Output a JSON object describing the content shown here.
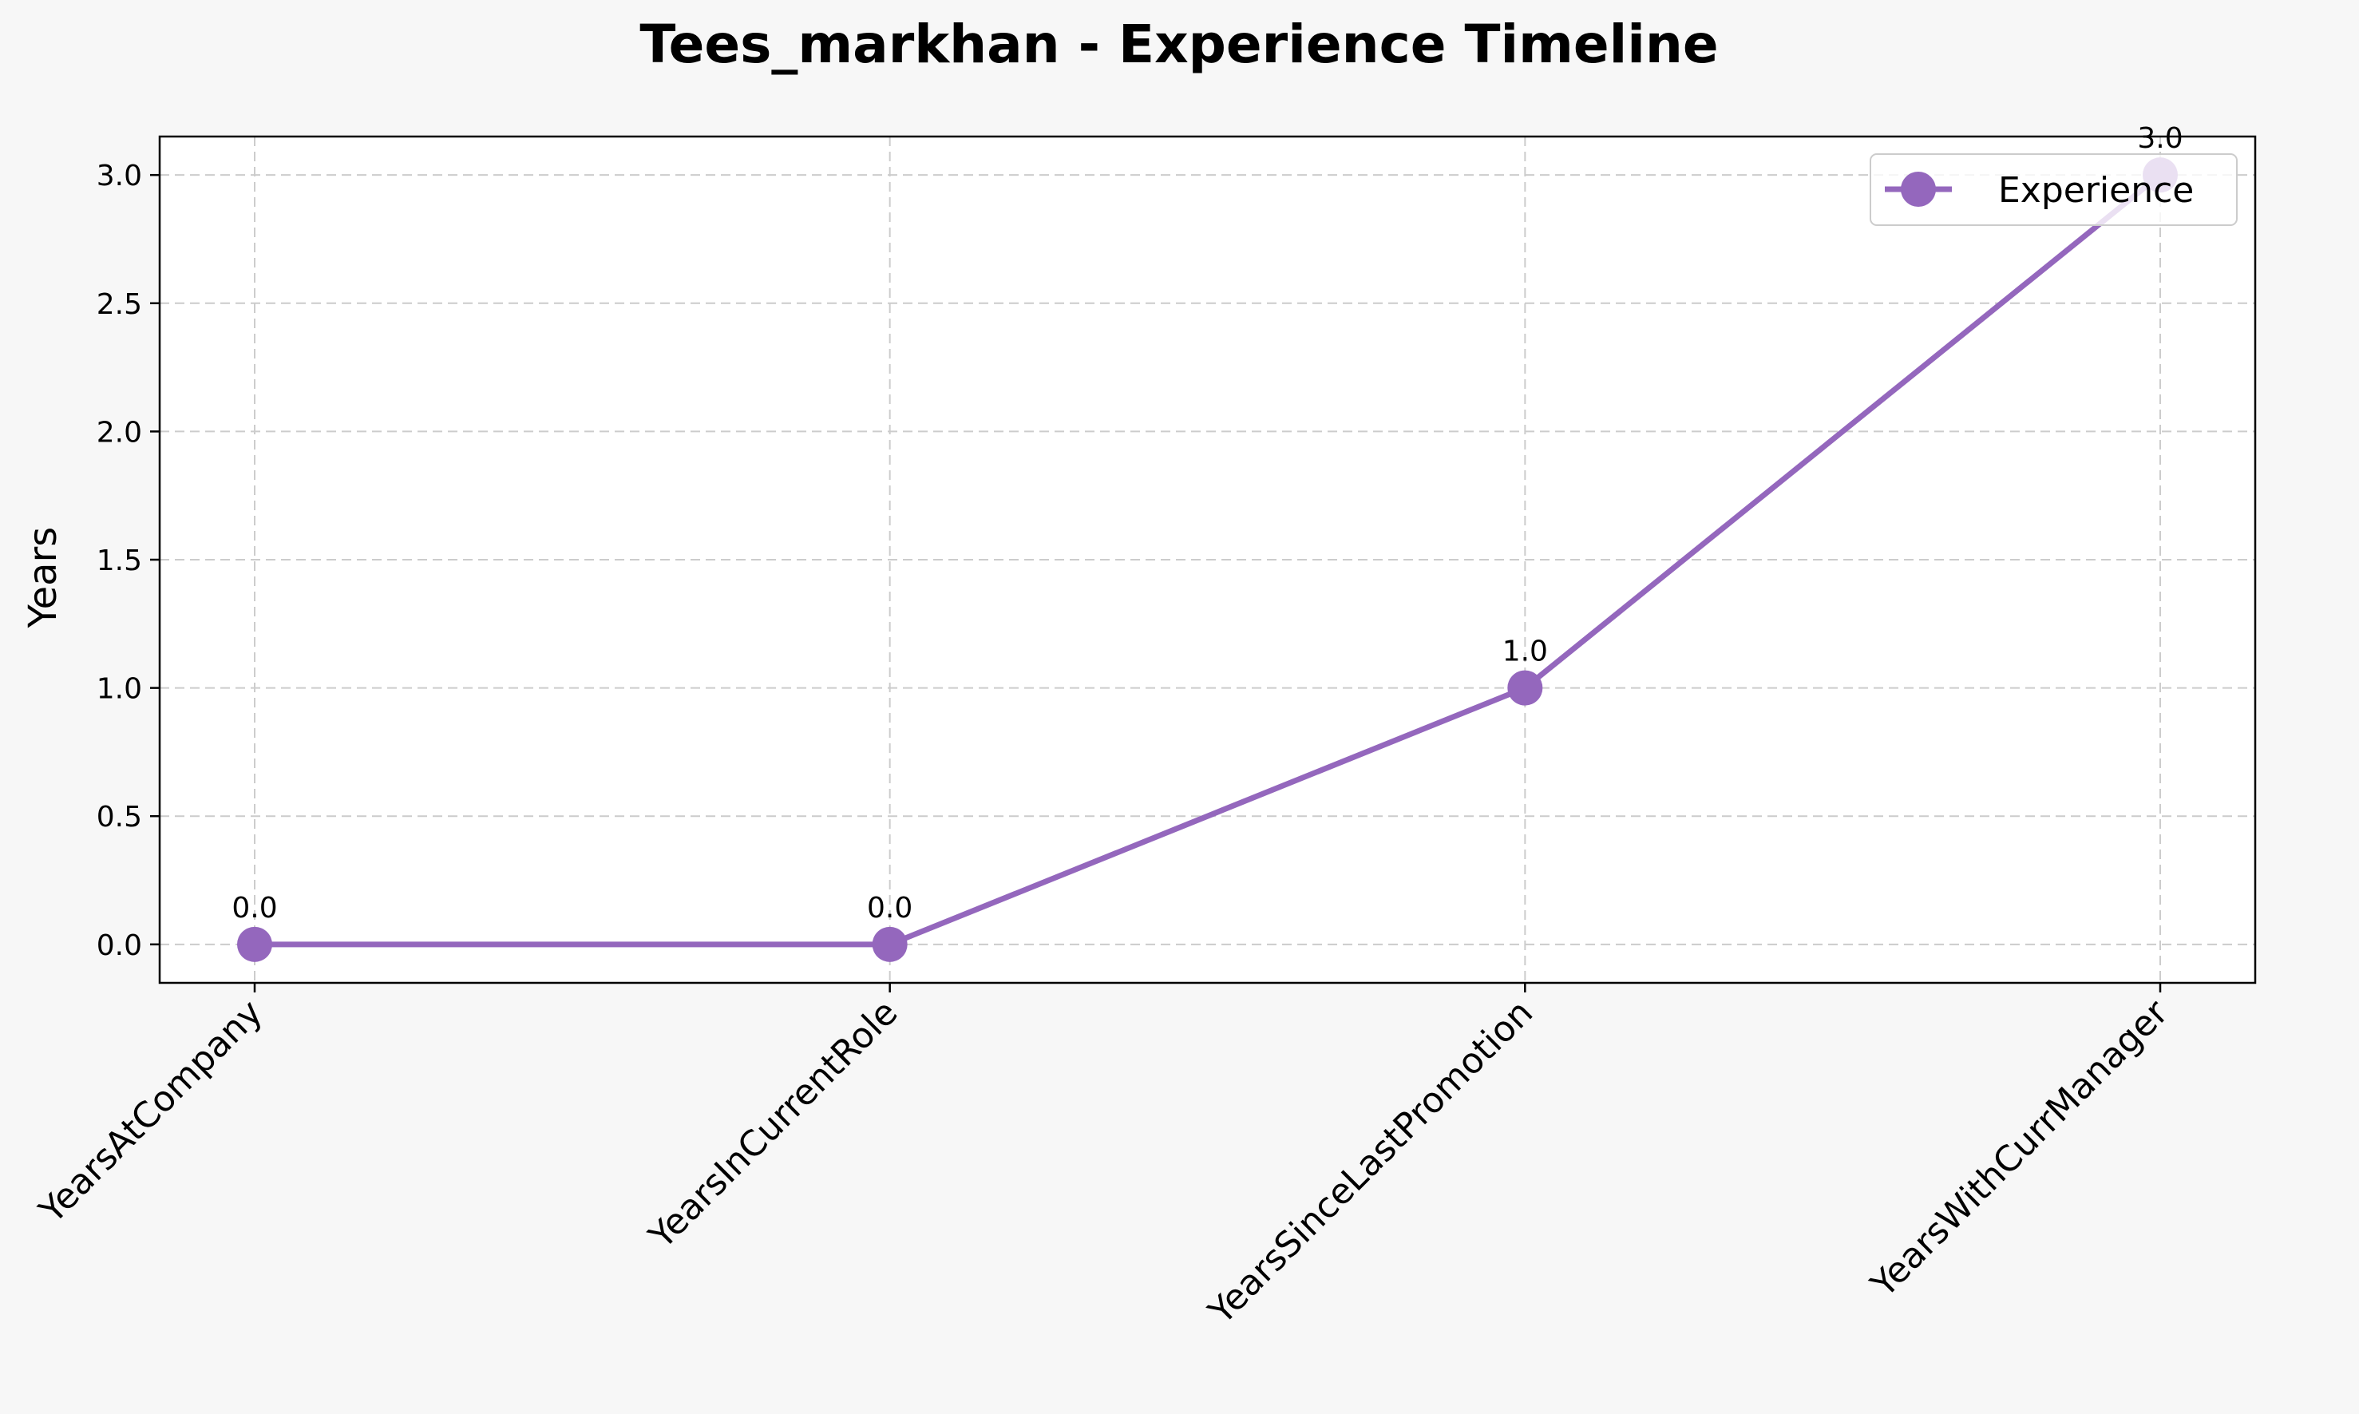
{
  "chart_data": {
    "type": "line",
    "title": "Tees_markhan - Experience Timeline",
    "xlabel": "",
    "ylabel": "Years",
    "categories": [
      "YearsAtCompany",
      "YearsInCurrentRole",
      "YearsSinceLastPromotion",
      "YearsWithCurrManager"
    ],
    "series": [
      {
        "name": "Experience",
        "values": [
          0.0,
          0.0,
          1.0,
          3.0
        ],
        "data_labels": [
          "0.0",
          "0.0",
          "1.0",
          "3.0"
        ]
      }
    ],
    "yticks": [
      "0.0",
      "0.5",
      "1.0",
      "1.5",
      "2.0",
      "2.5",
      "3.0"
    ],
    "ylim": [
      -0.15,
      3.15
    ],
    "grid": true,
    "legend_position": "top-right",
    "colors": {
      "series": "#9467bd",
      "background": "#f7f7f7",
      "plot_background": "#ffffff",
      "grid": "#cccccc",
      "axis": "#000000"
    }
  }
}
